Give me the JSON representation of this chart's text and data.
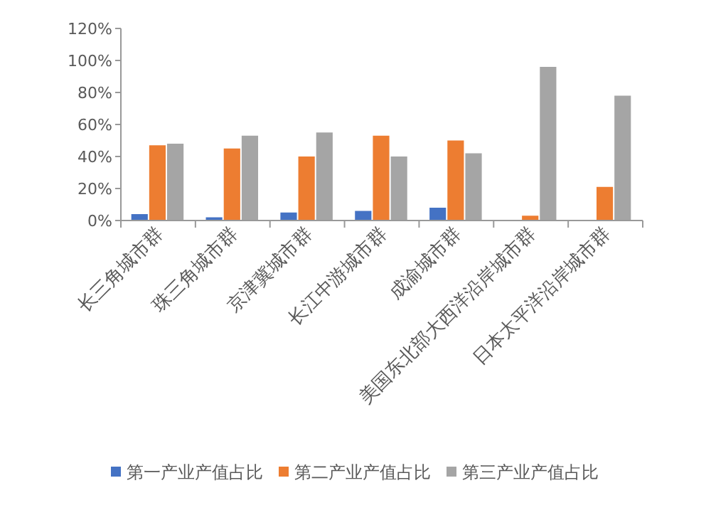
{
  "chart_data": {
    "type": "bar",
    "categories": [
      "长三角城市群",
      "珠三角城市群",
      "京津冀城市群",
      "长江中游城市群",
      "成渝城市群",
      "美国东北部大西洋沿岸城市群",
      "日本太平洋沿岸城市群"
    ],
    "series": [
      {
        "name": "第一产业产值占比",
        "color": "#4472c4",
        "values": [
          4,
          2,
          5,
          6,
          8,
          0,
          0
        ]
      },
      {
        "name": "第二产业产值占比",
        "color": "#ed7d31",
        "values": [
          47,
          45,
          40,
          53,
          50,
          3,
          21
        ]
      },
      {
        "name": "第三产业产值占比",
        "color": "#a5a5a5",
        "values": [
          48,
          53,
          55,
          40,
          42,
          96,
          78
        ]
      }
    ],
    "ylim": [
      0,
      120
    ],
    "yticks": [
      {
        "value": 0,
        "label": "0%"
      },
      {
        "value": 20,
        "label": "20%"
      },
      {
        "value": 40,
        "label": "40%"
      },
      {
        "value": 60,
        "label": "60%"
      },
      {
        "value": 80,
        "label": "80%"
      },
      {
        "value": 100,
        "label": "100%"
      },
      {
        "value": 120,
        "label": "120%"
      }
    ],
    "grid": false,
    "legend": "bottom"
  }
}
